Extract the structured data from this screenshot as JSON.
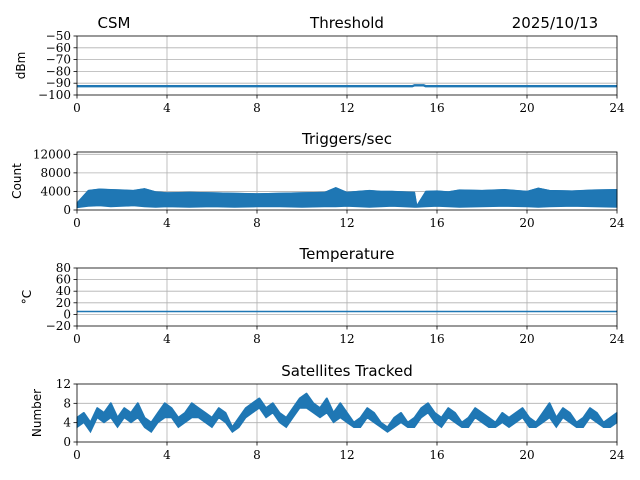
{
  "header": {
    "left": "CSM",
    "right": "2025/10/13"
  },
  "colors": {
    "series": "#1f77b4",
    "grid": "#b0b0b0"
  },
  "chart_data": [
    {
      "type": "line",
      "title": "Threshold",
      "ylabel": "dBm",
      "xlim": [
        0,
        24
      ],
      "ylim": [
        -100,
        -50
      ],
      "xticks": [
        "0",
        "4",
        "8",
        "12",
        "16",
        "20",
        "24"
      ],
      "yticks": [
        "−50",
        "−60",
        "−70",
        "−80",
        "−90",
        "−100"
      ],
      "ytick_values": [
        -50,
        -60,
        -70,
        -80,
        -90,
        -100
      ],
      "grid": true,
      "series": [
        {
          "x": [
            0,
            2,
            4,
            6,
            8,
            10,
            12,
            14,
            14.9,
            15.0,
            15.2,
            15.4,
            15.5,
            16,
            18,
            20,
            22,
            24
          ],
          "values": [
            -92.5,
            -92.5,
            -92.5,
            -92.5,
            -92.5,
            -92.5,
            -92.5,
            -92.5,
            -92.5,
            -91.8,
            -91.8,
            -91.8,
            -92.5,
            -92.5,
            -92.5,
            -92.5,
            -92.5,
            -92.5
          ]
        }
      ]
    },
    {
      "type": "line",
      "title": "Triggers/sec",
      "ylabel": "Count",
      "xlim": [
        0,
        24
      ],
      "ylim": [
        0,
        12500
      ],
      "xticks": [
        "0",
        "4",
        "8",
        "12",
        "16",
        "20",
        "24"
      ],
      "yticks": [
        "0",
        "4000",
        "8000",
        "12000"
      ],
      "ytick_values": [
        0,
        4000,
        8000,
        12000
      ],
      "grid": true,
      "series": [
        {
          "x": [
            0,
            0.5,
            1,
            1.5,
            2,
            2.5,
            3,
            3.5,
            4,
            5,
            6,
            7,
            8,
            9,
            10,
            11,
            11.5,
            12,
            12.5,
            13,
            13.5,
            14,
            14.5,
            15,
            15.1,
            15.5,
            16,
            16.5,
            17,
            18,
            19,
            20,
            20.5,
            21,
            22,
            23,
            24
          ],
          "values": [
            1500,
            4200,
            4500,
            4400,
            4300,
            4200,
            4600,
            3900,
            3700,
            3800,
            3700,
            3600,
            3500,
            3600,
            3700,
            3800,
            4800,
            3800,
            4000,
            4200,
            4000,
            4000,
            3900,
            3800,
            900,
            4000,
            4100,
            3900,
            4300,
            4200,
            4400,
            4000,
            4700,
            4200,
            4100,
            4300,
            4400
          ],
          "lower": [
            500,
            800,
            900,
            700,
            800,
            900,
            700,
            600,
            700,
            600,
            700,
            600,
            700,
            700,
            600,
            700,
            700,
            800,
            700,
            600,
            700,
            800,
            700,
            600,
            600,
            700,
            800,
            700,
            600,
            700,
            800,
            700,
            600,
            700,
            800,
            700,
            600
          ]
        }
      ]
    },
    {
      "type": "line",
      "title": "Temperature",
      "ylabel": "°C",
      "xlim": [
        0,
        24
      ],
      "ylim": [
        -20,
        80
      ],
      "xticks": [
        "0",
        "4",
        "8",
        "12",
        "16",
        "20",
        "24"
      ],
      "yticks": [
        "−20",
        "0",
        "20",
        "40",
        "60",
        "80"
      ],
      "ytick_values": [
        -20,
        0,
        20,
        40,
        60,
        80
      ],
      "grid": true,
      "series": [
        {
          "x": [
            0,
            4,
            8,
            12,
            16,
            20,
            24
          ],
          "values": [
            5,
            5,
            5,
            5,
            5,
            5,
            5
          ]
        }
      ]
    },
    {
      "type": "line",
      "title": "Satellites Tracked",
      "ylabel": "Number",
      "xlim": [
        0,
        24
      ],
      "ylim": [
        0,
        12
      ],
      "xticks": [
        "0",
        "4",
        "8",
        "12",
        "16",
        "20",
        "24"
      ],
      "yticks": [
        "0",
        "4",
        "8",
        "12"
      ],
      "ytick_values": [
        0,
        4,
        8,
        12
      ],
      "grid": true,
      "series": [
        {
          "x": [
            0,
            0.3,
            0.6,
            0.9,
            1.2,
            1.5,
            1.8,
            2.1,
            2.4,
            2.7,
            3.0,
            3.3,
            3.6,
            3.9,
            4.2,
            4.5,
            4.8,
            5.1,
            5.4,
            5.7,
            6.0,
            6.3,
            6.6,
            6.9,
            7.2,
            7.5,
            7.8,
            8.1,
            8.4,
            8.7,
            9.0,
            9.3,
            9.6,
            9.9,
            10.2,
            10.5,
            10.8,
            11.1,
            11.4,
            11.7,
            12.0,
            12.3,
            12.6,
            12.9,
            13.2,
            13.5,
            13.8,
            14.1,
            14.4,
            14.7,
            15.0,
            15.3,
            15.6,
            15.9,
            16.2,
            16.5,
            16.8,
            17.1,
            17.4,
            17.7,
            18.0,
            18.3,
            18.6,
            18.9,
            19.2,
            19.5,
            19.8,
            20.1,
            20.4,
            20.7,
            21.0,
            21.3,
            21.6,
            21.9,
            22.2,
            22.5,
            22.8,
            23.1,
            23.4,
            23.7,
            24.0
          ],
          "values": [
            5,
            6,
            4,
            7,
            6,
            8,
            5,
            7,
            6,
            8,
            5,
            4,
            6,
            8,
            7,
            5,
            6,
            8,
            7,
            6,
            5,
            7,
            6,
            3,
            5,
            7,
            8,
            9,
            7,
            8,
            6,
            5,
            7,
            9,
            10,
            8,
            7,
            9,
            6,
            8,
            6,
            4,
            5,
            7,
            6,
            4,
            3,
            5,
            6,
            4,
            5,
            7,
            8,
            6,
            5,
            7,
            6,
            4,
            5,
            7,
            6,
            5,
            4,
            6,
            5,
            6,
            7,
            5,
            4,
            6,
            8,
            5,
            7,
            6,
            4,
            5,
            7,
            6,
            4,
            5,
            6
          ],
          "lower": [
            3,
            4,
            2,
            5,
            4,
            5,
            3,
            5,
            4,
            5,
            3,
            2,
            4,
            5,
            5,
            3,
            4,
            5,
            5,
            4,
            3,
            5,
            4,
            2,
            3,
            5,
            6,
            7,
            5,
            6,
            4,
            3,
            5,
            7,
            7,
            6,
            5,
            6,
            4,
            5,
            4,
            3,
            3,
            5,
            4,
            3,
            2,
            3,
            4,
            3,
            3,
            5,
            6,
            4,
            3,
            5,
            4,
            3,
            3,
            5,
            4,
            3,
            3,
            4,
            3,
            4,
            5,
            3,
            3,
            4,
            5,
            3,
            5,
            4,
            3,
            3,
            5,
            4,
            3,
            3,
            4
          ]
        }
      ]
    }
  ]
}
